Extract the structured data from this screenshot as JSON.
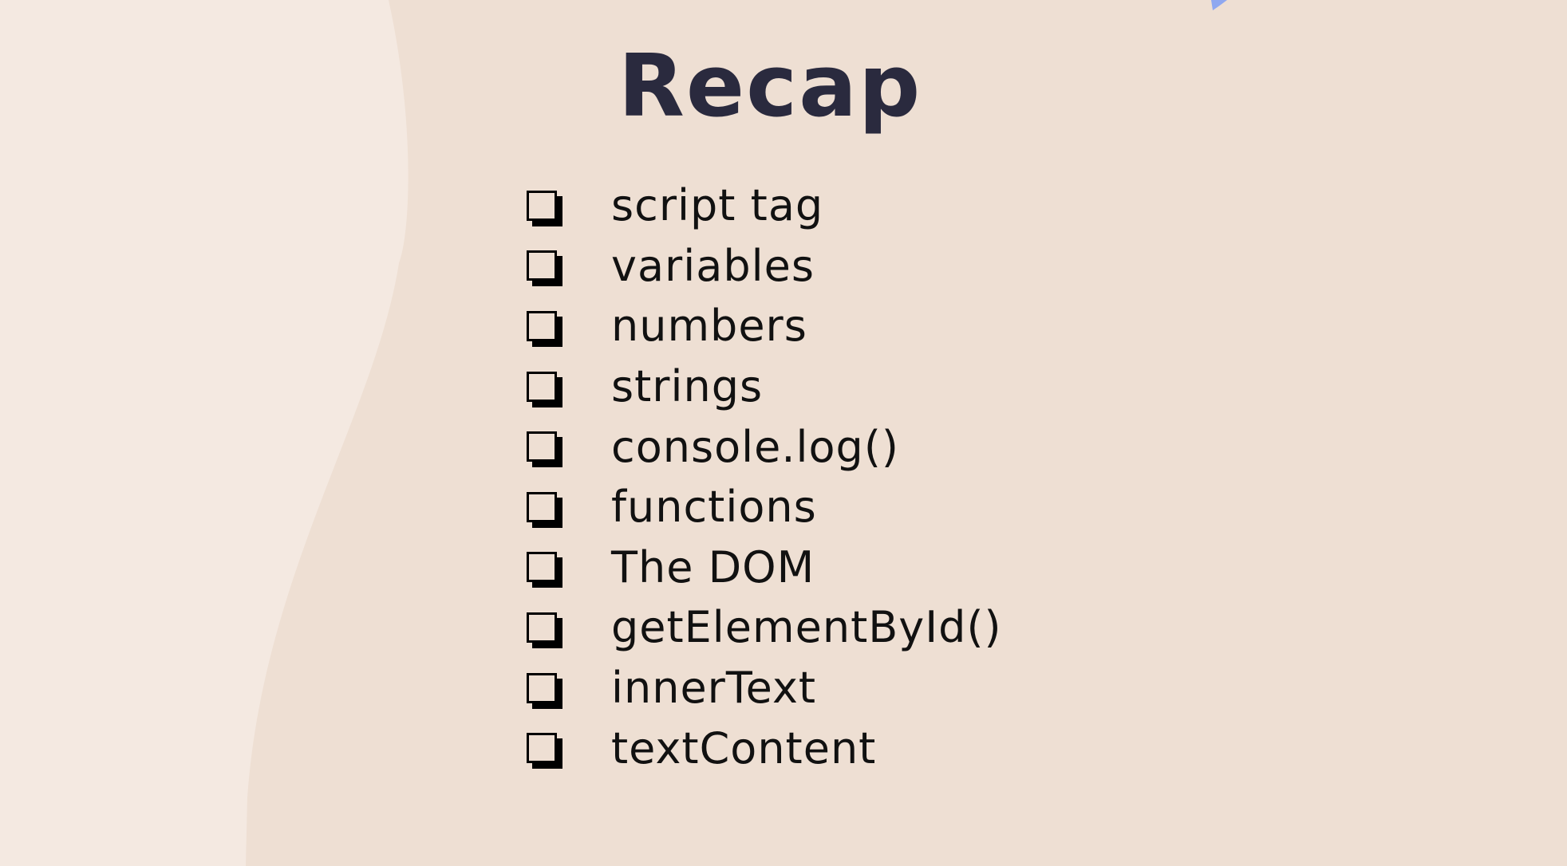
{
  "slide": {
    "title": "Recap",
    "items": [
      {
        "label": "script tag"
      },
      {
        "label": "variables"
      },
      {
        "label": "numbers"
      },
      {
        "label": "strings"
      },
      {
        "label": "console.log()"
      },
      {
        "label": "functions"
      },
      {
        "label": "The DOM"
      },
      {
        "label": "getElementById()"
      },
      {
        "label": "innerText"
      },
      {
        "label": "textContent"
      }
    ]
  },
  "colors": {
    "background": "#eedfd3",
    "wave": "#f4e9e1",
    "title": "#2a2a3e",
    "text": "#111111",
    "accent_mark": "#8fa8f0"
  }
}
